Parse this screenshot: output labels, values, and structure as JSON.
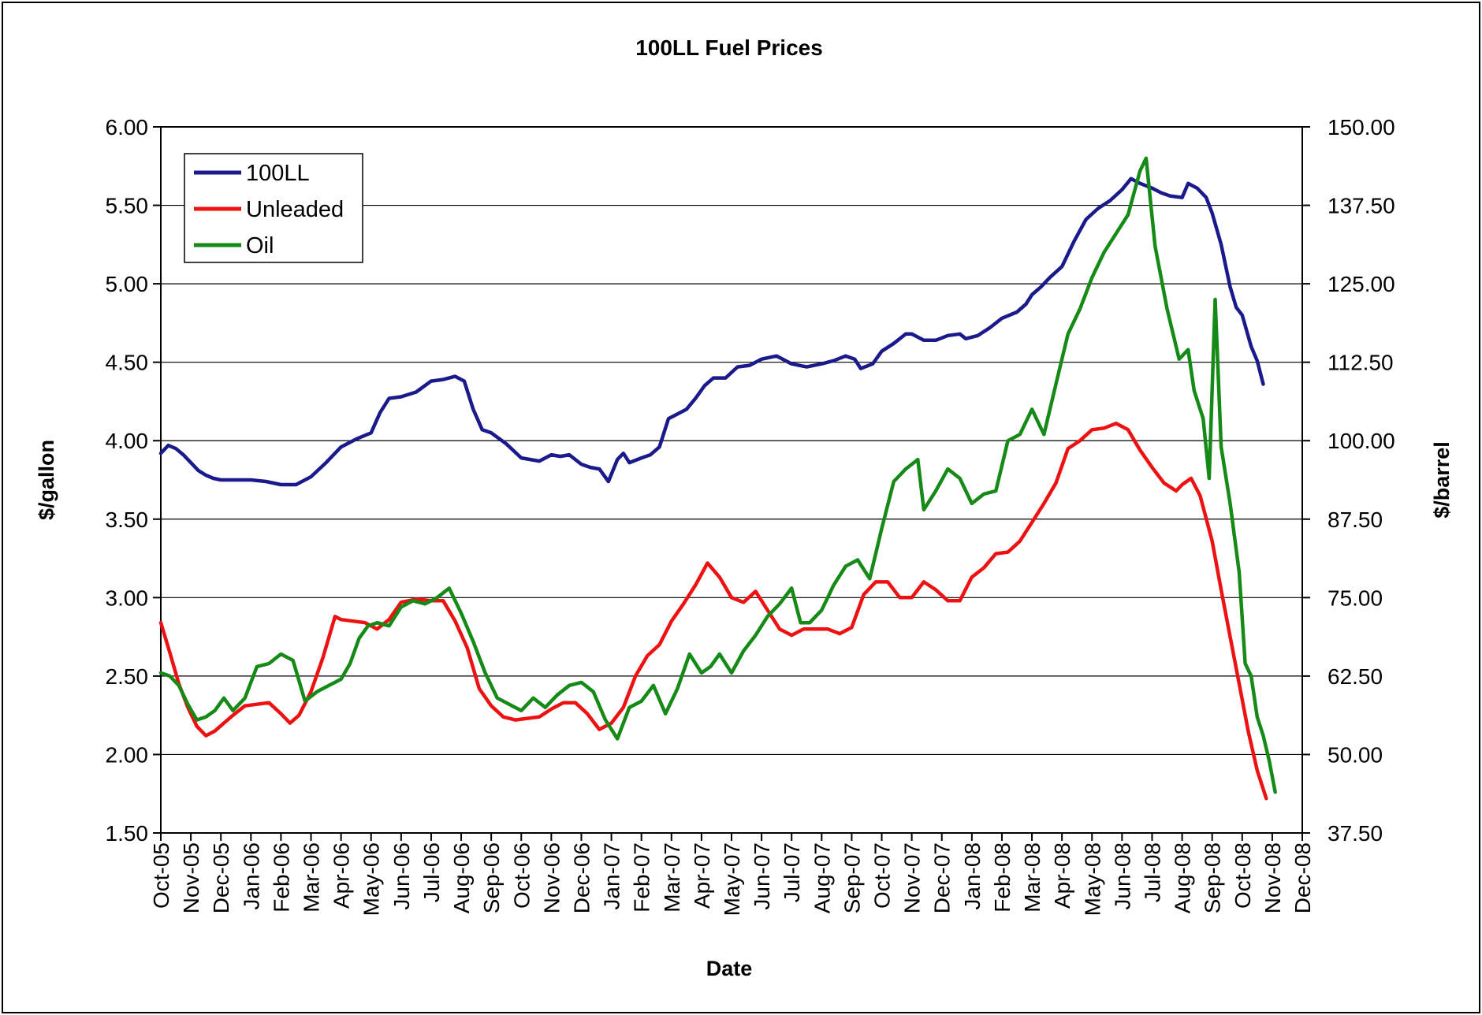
{
  "chart_data": {
    "type": "line",
    "title": "100LL Fuel Prices",
    "xlabel": "Date",
    "ylabel": "$/gallon",
    "y2label": "$/barrel",
    "ylim": [
      1.5,
      6.0
    ],
    "y2lim": [
      37.5,
      150.0
    ],
    "yticks": [
      "1.50",
      "2.00",
      "2.50",
      "3.00",
      "3.50",
      "4.00",
      "4.50",
      "5.00",
      "5.50",
      "6.00"
    ],
    "y2ticks": [
      "37.50",
      "50.00",
      "62.50",
      "75.00",
      "87.50",
      "100.00",
      "112.50",
      "125.00",
      "137.50",
      "150.00"
    ],
    "categories": [
      "Oct-05",
      "Nov-05",
      "Dec-05",
      "Jan-06",
      "Feb-06",
      "Mar-06",
      "Apr-06",
      "May-06",
      "Jun-06",
      "Jul-06",
      "Aug-06",
      "Sep-06",
      "Oct-06",
      "Nov-06",
      "Dec-06",
      "Jan-07",
      "Feb-07",
      "Mar-07",
      "Apr-07",
      "May-07",
      "Jun-07",
      "Jul-07",
      "Aug-07",
      "Sep-07",
      "Oct-07",
      "Nov-07",
      "Dec-07",
      "Jan-08",
      "Feb-08",
      "Mar-08",
      "Apr-08",
      "May-08",
      "Jun-08",
      "Jul-08",
      "Aug-08",
      "Sep-08",
      "Oct-08",
      "Nov-08",
      "Dec-08"
    ],
    "grid": true,
    "legend_position": "top-left",
    "series": [
      {
        "name": "100LL",
        "axis": "left",
        "color": "#1a1a8c",
        "points": [
          [
            0,
            3.92
          ],
          [
            0.25,
            3.97
          ],
          [
            0.5,
            3.95
          ],
          [
            0.75,
            3.91
          ],
          [
            1,
            3.86
          ],
          [
            1.25,
            3.81
          ],
          [
            1.5,
            3.78
          ],
          [
            1.75,
            3.76
          ],
          [
            2,
            3.75
          ],
          [
            2.5,
            3.75
          ],
          [
            3,
            3.75
          ],
          [
            3.5,
            3.74
          ],
          [
            4,
            3.72
          ],
          [
            4.5,
            3.72
          ],
          [
            5,
            3.77
          ],
          [
            5.5,
            3.86
          ],
          [
            6,
            3.96
          ],
          [
            6.5,
            4.01
          ],
          [
            7,
            4.05
          ],
          [
            7.3,
            4.18
          ],
          [
            7.6,
            4.27
          ],
          [
            8,
            4.28
          ],
          [
            8.5,
            4.31
          ],
          [
            9,
            4.38
          ],
          [
            9.4,
            4.39
          ],
          [
            9.8,
            4.41
          ],
          [
            10.1,
            4.38
          ],
          [
            10.4,
            4.2
          ],
          [
            10.7,
            4.07
          ],
          [
            11,
            4.05
          ],
          [
            11.5,
            3.98
          ],
          [
            12,
            3.89
          ],
          [
            12.3,
            3.88
          ],
          [
            12.6,
            3.87
          ],
          [
            13,
            3.91
          ],
          [
            13.3,
            3.9
          ],
          [
            13.6,
            3.91
          ],
          [
            14,
            3.85
          ],
          [
            14.3,
            3.83
          ],
          [
            14.6,
            3.82
          ],
          [
            14.9,
            3.74
          ],
          [
            15.2,
            3.88
          ],
          [
            15.4,
            3.92
          ],
          [
            15.6,
            3.86
          ],
          [
            16,
            3.89
          ],
          [
            16.3,
            3.91
          ],
          [
            16.6,
            3.96
          ],
          [
            16.9,
            4.14
          ],
          [
            17.2,
            4.17
          ],
          [
            17.5,
            4.2
          ],
          [
            17.8,
            4.27
          ],
          [
            18.1,
            4.35
          ],
          [
            18.4,
            4.4
          ],
          [
            18.8,
            4.4
          ],
          [
            19.2,
            4.47
          ],
          [
            19.6,
            4.48
          ],
          [
            20,
            4.52
          ],
          [
            20.5,
            4.54
          ],
          [
            21,
            4.49
          ],
          [
            21.5,
            4.47
          ],
          [
            22,
            4.49
          ],
          [
            22.4,
            4.51
          ],
          [
            22.8,
            4.54
          ],
          [
            23.1,
            4.52
          ],
          [
            23.3,
            4.46
          ],
          [
            23.7,
            4.49
          ],
          [
            24,
            4.57
          ],
          [
            24.4,
            4.62
          ],
          [
            24.8,
            4.68
          ],
          [
            25,
            4.68
          ],
          [
            25.4,
            4.64
          ],
          [
            25.8,
            4.64
          ],
          [
            26.2,
            4.67
          ],
          [
            26.6,
            4.68
          ],
          [
            26.8,
            4.65
          ],
          [
            27.2,
            4.67
          ],
          [
            27.6,
            4.72
          ],
          [
            28,
            4.78
          ],
          [
            28.5,
            4.82
          ],
          [
            28.8,
            4.87
          ],
          [
            29,
            4.93
          ],
          [
            29.3,
            4.98
          ],
          [
            29.6,
            5.04
          ],
          [
            30,
            5.11
          ],
          [
            30.4,
            5.27
          ],
          [
            30.8,
            5.41
          ],
          [
            31.2,
            5.48
          ],
          [
            31.6,
            5.53
          ],
          [
            32,
            5.6
          ],
          [
            32.3,
            5.67
          ],
          [
            32.6,
            5.64
          ],
          [
            33,
            5.61
          ],
          [
            33.3,
            5.58
          ],
          [
            33.6,
            5.56
          ],
          [
            34,
            5.55
          ],
          [
            34.2,
            5.64
          ],
          [
            34.5,
            5.61
          ],
          [
            34.8,
            5.55
          ],
          [
            35,
            5.45
          ],
          [
            35.3,
            5.25
          ],
          [
            35.6,
            4.98
          ],
          [
            35.8,
            4.85
          ],
          [
            36,
            4.8
          ],
          [
            36.3,
            4.6
          ],
          [
            36.5,
            4.51
          ],
          [
            36.7,
            4.36
          ]
        ]
      },
      {
        "name": "Unleaded",
        "axis": "left",
        "color": "#ee1111",
        "points": [
          [
            0,
            2.84
          ],
          [
            0.3,
            2.65
          ],
          [
            0.6,
            2.45
          ],
          [
            0.9,
            2.3
          ],
          [
            1.2,
            2.18
          ],
          [
            1.5,
            2.12
          ],
          [
            1.8,
            2.15
          ],
          [
            2.1,
            2.2
          ],
          [
            2.4,
            2.25
          ],
          [
            2.8,
            2.31
          ],
          [
            3.2,
            2.32
          ],
          [
            3.6,
            2.33
          ],
          [
            4,
            2.26
          ],
          [
            4.3,
            2.2
          ],
          [
            4.6,
            2.25
          ],
          [
            5,
            2.4
          ],
          [
            5.4,
            2.62
          ],
          [
            5.8,
            2.88
          ],
          [
            6,
            2.86
          ],
          [
            6.4,
            2.85
          ],
          [
            6.8,
            2.84
          ],
          [
            7.2,
            2.8
          ],
          [
            7.6,
            2.86
          ],
          [
            8,
            2.97
          ],
          [
            8.5,
            2.99
          ],
          [
            9,
            2.98
          ],
          [
            9.4,
            2.98
          ],
          [
            9.8,
            2.85
          ],
          [
            10.2,
            2.68
          ],
          [
            10.6,
            2.42
          ],
          [
            11,
            2.31
          ],
          [
            11.4,
            2.24
          ],
          [
            11.8,
            2.22
          ],
          [
            12.2,
            2.23
          ],
          [
            12.6,
            2.24
          ],
          [
            13,
            2.29
          ],
          [
            13.4,
            2.33
          ],
          [
            13.8,
            2.33
          ],
          [
            14.2,
            2.26
          ],
          [
            14.6,
            2.16
          ],
          [
            15,
            2.2
          ],
          [
            15.4,
            2.3
          ],
          [
            15.8,
            2.5
          ],
          [
            16.2,
            2.63
          ],
          [
            16.6,
            2.7
          ],
          [
            17,
            2.85
          ],
          [
            17.4,
            2.96
          ],
          [
            17.8,
            3.08
          ],
          [
            18.2,
            3.22
          ],
          [
            18.6,
            3.13
          ],
          [
            19,
            3.0
          ],
          [
            19.4,
            2.97
          ],
          [
            19.8,
            3.04
          ],
          [
            20.2,
            2.92
          ],
          [
            20.6,
            2.8
          ],
          [
            21,
            2.76
          ],
          [
            21.4,
            2.8
          ],
          [
            21.8,
            2.8
          ],
          [
            22.2,
            2.8
          ],
          [
            22.6,
            2.77
          ],
          [
            23,
            2.81
          ],
          [
            23.4,
            3.02
          ],
          [
            23.8,
            3.1
          ],
          [
            24.2,
            3.1
          ],
          [
            24.6,
            3.0
          ],
          [
            25,
            3.0
          ],
          [
            25.4,
            3.1
          ],
          [
            25.8,
            3.05
          ],
          [
            26.2,
            2.98
          ],
          [
            26.6,
            2.98
          ],
          [
            27,
            3.13
          ],
          [
            27.4,
            3.19
          ],
          [
            27.8,
            3.28
          ],
          [
            28.2,
            3.29
          ],
          [
            28.6,
            3.36
          ],
          [
            29,
            3.48
          ],
          [
            29.4,
            3.6
          ],
          [
            29.8,
            3.73
          ],
          [
            30.2,
            3.95
          ],
          [
            30.6,
            4.0
          ],
          [
            31,
            4.07
          ],
          [
            31.4,
            4.08
          ],
          [
            31.8,
            4.11
          ],
          [
            32.2,
            4.07
          ],
          [
            32.6,
            3.94
          ],
          [
            33,
            3.83
          ],
          [
            33.4,
            3.73
          ],
          [
            33.8,
            3.68
          ],
          [
            34,
            3.72
          ],
          [
            34.3,
            3.76
          ],
          [
            34.6,
            3.65
          ],
          [
            35,
            3.36
          ],
          [
            35.3,
            3.05
          ],
          [
            35.6,
            2.75
          ],
          [
            35.9,
            2.45
          ],
          [
            36.2,
            2.15
          ],
          [
            36.5,
            1.9
          ],
          [
            36.8,
            1.72
          ]
        ]
      },
      {
        "name": "Oil",
        "axis": "right",
        "color": "#168a16",
        "points": [
          [
            0,
            63
          ],
          [
            0.3,
            62.5
          ],
          [
            0.6,
            61
          ],
          [
            0.9,
            58
          ],
          [
            1.2,
            55.5
          ],
          [
            1.5,
            56
          ],
          [
            1.8,
            57
          ],
          [
            2.1,
            59
          ],
          [
            2.4,
            57
          ],
          [
            2.8,
            59
          ],
          [
            3.2,
            64
          ],
          [
            3.6,
            64.5
          ],
          [
            4,
            66
          ],
          [
            4.4,
            65
          ],
          [
            4.8,
            58.5
          ],
          [
            5.2,
            60
          ],
          [
            5.6,
            61
          ],
          [
            6,
            62
          ],
          [
            6.3,
            64.5
          ],
          [
            6.6,
            68.5
          ],
          [
            6.9,
            70.5
          ],
          [
            7.2,
            71
          ],
          [
            7.6,
            70.5
          ],
          [
            8,
            73.5
          ],
          [
            8.4,
            74.5
          ],
          [
            8.8,
            74
          ],
          [
            9.2,
            75
          ],
          [
            9.6,
            76.5
          ],
          [
            10,
            72.5
          ],
          [
            10.4,
            68
          ],
          [
            10.8,
            63
          ],
          [
            11.2,
            59
          ],
          [
            11.6,
            58
          ],
          [
            12,
            57
          ],
          [
            12.4,
            59
          ],
          [
            12.8,
            57.5
          ],
          [
            13.2,
            59.5
          ],
          [
            13.6,
            61
          ],
          [
            14,
            61.5
          ],
          [
            14.4,
            60
          ],
          [
            14.8,
            55.5
          ],
          [
            15.2,
            52.5
          ],
          [
            15.6,
            57.5
          ],
          [
            16,
            58.5
          ],
          [
            16.4,
            61
          ],
          [
            16.8,
            56.5
          ],
          [
            17.2,
            60.5
          ],
          [
            17.6,
            66
          ],
          [
            18,
            63
          ],
          [
            18.3,
            64
          ],
          [
            18.6,
            66
          ],
          [
            19,
            63
          ],
          [
            19.4,
            66.5
          ],
          [
            19.8,
            69
          ],
          [
            20.2,
            72
          ],
          [
            20.6,
            74
          ],
          [
            21,
            76.5
          ],
          [
            21.3,
            71
          ],
          [
            21.6,
            71
          ],
          [
            22,
            73
          ],
          [
            22.4,
            77
          ],
          [
            22.8,
            80
          ],
          [
            23.2,
            81
          ],
          [
            23.6,
            78
          ],
          [
            24,
            86
          ],
          [
            24.4,
            93.5
          ],
          [
            24.8,
            95.5
          ],
          [
            25.2,
            97
          ],
          [
            25.4,
            89
          ],
          [
            25.8,
            92
          ],
          [
            26.2,
            95.5
          ],
          [
            26.6,
            94
          ],
          [
            27,
            90
          ],
          [
            27.4,
            91.5
          ],
          [
            27.8,
            92
          ],
          [
            28.2,
            100
          ],
          [
            28.6,
            101
          ],
          [
            29,
            105
          ],
          [
            29.4,
            101
          ],
          [
            29.8,
            109
          ],
          [
            30.2,
            117
          ],
          [
            30.6,
            121
          ],
          [
            31,
            126
          ],
          [
            31.4,
            130
          ],
          [
            31.8,
            133
          ],
          [
            32.2,
            136
          ],
          [
            32.6,
            143
          ],
          [
            32.8,
            145
          ],
          [
            33.1,
            131
          ],
          [
            33.5,
            121
          ],
          [
            33.9,
            113
          ],
          [
            34.2,
            114.5
          ],
          [
            34.4,
            108
          ],
          [
            34.7,
            103.5
          ],
          [
            34.9,
            94
          ],
          [
            35.1,
            122.5
          ],
          [
            35.3,
            99
          ],
          [
            35.6,
            90
          ],
          [
            35.9,
            79
          ],
          [
            36.1,
            64.5
          ],
          [
            36.3,
            62.5
          ],
          [
            36.5,
            56
          ],
          [
            36.7,
            53
          ],
          [
            36.9,
            49
          ],
          [
            37.1,
            44
          ]
        ]
      }
    ]
  }
}
